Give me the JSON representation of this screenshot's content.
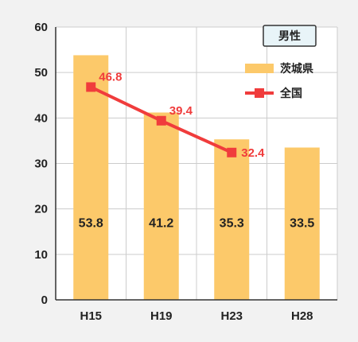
{
  "colors": {
    "background": "#f2f2f2",
    "plot_background": "#ffffff",
    "grid": "#cccccc",
    "axis": "#333333",
    "bar": "#fcc96a",
    "line": "#f03c3c",
    "title_box_fill": "#e8f4f8",
    "title_box_stroke": "#333333"
  },
  "chart_data": {
    "type": "bar",
    "title": "男性",
    "categories": [
      "H15",
      "H19",
      "H23",
      "H28"
    ],
    "ylim": [
      0,
      60
    ],
    "yticks": [
      0,
      10,
      20,
      30,
      40,
      50,
      60
    ],
    "ytick_labels": [
      "0",
      "10",
      "20",
      "30",
      "40",
      "50",
      "60"
    ],
    "grid": true,
    "legend_position": "top-right",
    "series": [
      {
        "name": "茨城県",
        "type": "bar",
        "values": [
          53.8,
          41.2,
          35.3,
          33.5
        ],
        "labels": [
          "53.8",
          "41.2",
          "35.3",
          "33.5"
        ]
      },
      {
        "name": "全国",
        "type": "line",
        "values": [
          46.8,
          39.4,
          32.4,
          null
        ],
        "labels": [
          "46.8",
          "39.4",
          "32.4",
          ""
        ]
      }
    ]
  }
}
